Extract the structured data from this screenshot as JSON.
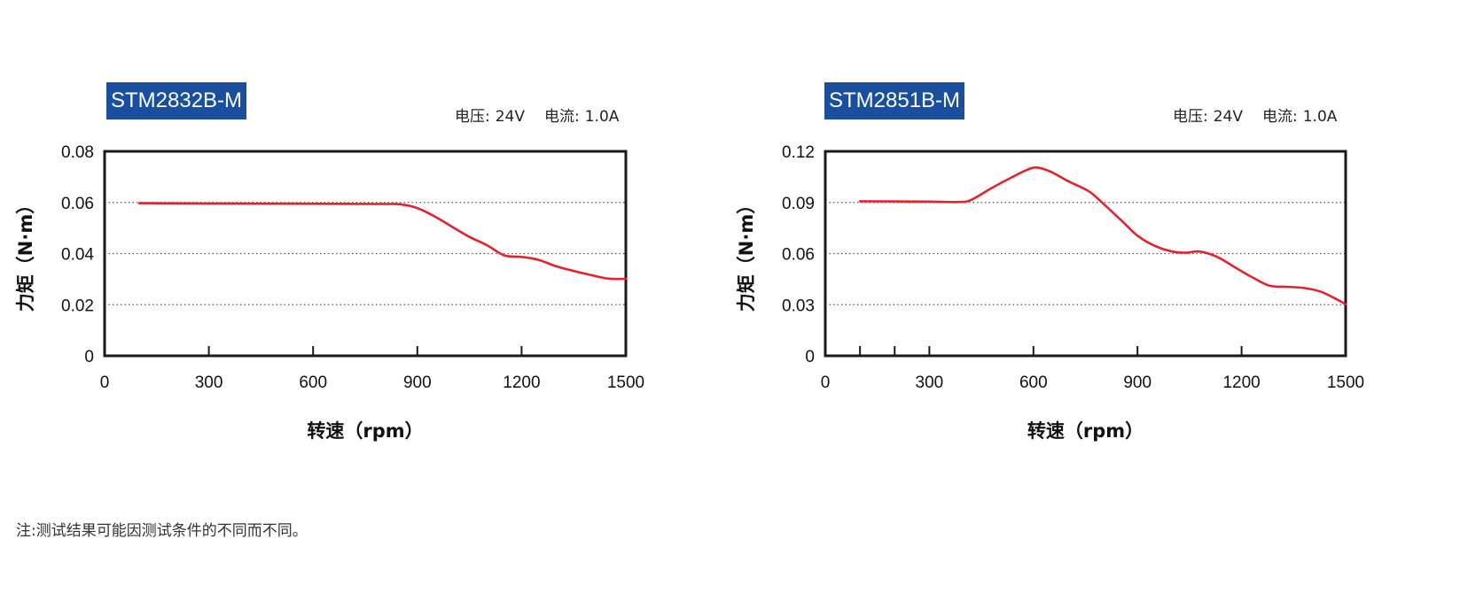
{
  "footnote": "注:测试结果可能因测试条件的不同而不同。",
  "colors": {
    "badge": "#1a4fa0",
    "curve": "#e3222b",
    "axis": "#1a1a1a",
    "grid": "#555555"
  },
  "chart_data": [
    {
      "type": "line",
      "title": "STM2832B-M",
      "voltage_label": "电压:",
      "voltage_value": "24V",
      "current_label": "电流:",
      "current_value": "1.0A",
      "xlabel": "转速（rpm）",
      "ylabel": "力矩（N·m）",
      "xlim": [
        0,
        1500
      ],
      "ylim": [
        0,
        0.08
      ],
      "x_ticks": [
        "0",
        "300",
        "600",
        "900",
        "1200",
        "1500"
      ],
      "y_ticks": [
        "0",
        "0.02",
        "0.04",
        "0.06",
        "0.08"
      ],
      "y_tick_values": [
        0,
        0.02,
        0.04,
        0.06,
        0.08
      ],
      "x_tick_values": [
        0,
        300,
        600,
        900,
        1200,
        1500
      ],
      "grid": "horizontal-dotted",
      "series": [
        {
          "x": [
            100,
            300,
            600,
            800,
            850,
            900,
            950,
            1000,
            1050,
            1100,
            1150,
            1200,
            1250,
            1300,
            1350,
            1400,
            1450,
            1500
          ],
          "y": [
            0.0597,
            0.0596,
            0.0595,
            0.0594,
            0.0593,
            0.0578,
            0.0545,
            0.0505,
            0.0465,
            0.0433,
            0.0393,
            0.0387,
            0.0375,
            0.035,
            0.0332,
            0.0316,
            0.0302,
            0.0301
          ]
        }
      ]
    },
    {
      "type": "line",
      "title": "STM2851B-M",
      "voltage_label": "电压:",
      "voltage_value": "24V",
      "current_label": "电流:",
      "current_value": "1.0A",
      "xlabel": "转速（rpm）",
      "ylabel": "力矩（N·m）",
      "xlim": [
        0,
        1500
      ],
      "ylim": [
        0,
        0.12
      ],
      "x_ticks": [
        "0",
        "300",
        "600",
        "900",
        "1200",
        "1500"
      ],
      "y_ticks": [
        "0",
        "0.03",
        "0.06",
        "0.09",
        "0.12"
      ],
      "y_tick_values": [
        0,
        0.03,
        0.06,
        0.09,
        0.12
      ],
      "x_tick_values": [
        0,
        300,
        600,
        900,
        1200,
        1500
      ],
      "extra_x_ticks": [
        100,
        200
      ],
      "grid": "horizontal-dotted",
      "series": [
        {
          "x": [
            100,
            200,
            300,
            385,
            420,
            480,
            540,
            580,
            610,
            650,
            700,
            760,
            800,
            860,
            900,
            950,
            1000,
            1040,
            1080,
            1130,
            1180,
            1230,
            1280,
            1330,
            1380,
            1430,
            1480,
            1500
          ],
          "y": [
            0.0907,
            0.0906,
            0.0905,
            0.0903,
            0.0915,
            0.0985,
            0.105,
            0.109,
            0.1105,
            0.108,
            0.1025,
            0.0965,
            0.0895,
            0.0782,
            0.0705,
            0.0645,
            0.0612,
            0.0605,
            0.0612,
            0.058,
            0.052,
            0.0462,
            0.0412,
            0.0405,
            0.0398,
            0.0375,
            0.0325,
            0.0302
          ]
        }
      ]
    }
  ]
}
